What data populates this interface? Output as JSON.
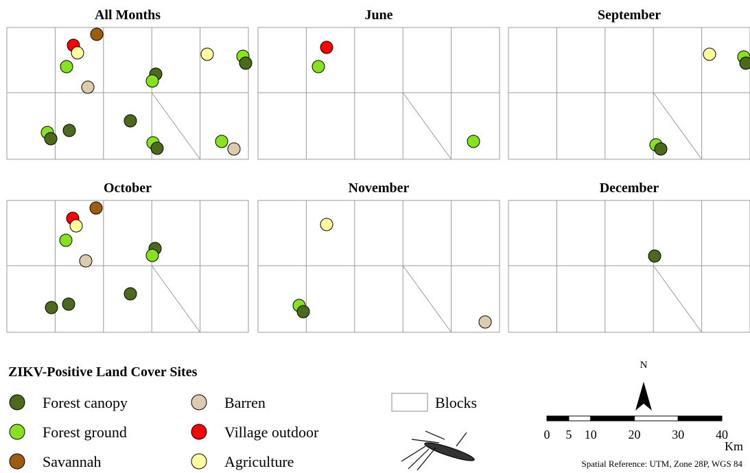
{
  "panels": [
    {
      "title": "All Months"
    },
    {
      "title": "June"
    },
    {
      "title": "September"
    },
    {
      "title": "October"
    },
    {
      "title": "November"
    },
    {
      "title": "December"
    }
  ],
  "legend": {
    "title": "ZIKV-Positive Land Cover Sites",
    "items": [
      {
        "label": "Forest canopy",
        "color": "#4b6a1b"
      },
      {
        "label": "Forest ground",
        "color": "#86e21c"
      },
      {
        "label": "Savannah",
        "color": "#9e5c0e"
      },
      {
        "label": "Barren",
        "color": "#dccbac"
      },
      {
        "label": "Village outdoor",
        "color": "#ff0000"
      },
      {
        "label": "Agriculture",
        "color": "#ffff9e"
      }
    ],
    "blocks": "Blocks"
  },
  "north": "N",
  "scale_bar": {
    "ticks": [
      0,
      5,
      10,
      20,
      30,
      40
    ],
    "unit": "Km"
  },
  "spatial_reference": "Spatial Reference: UTM, Zone 28P, WGS 84"
}
